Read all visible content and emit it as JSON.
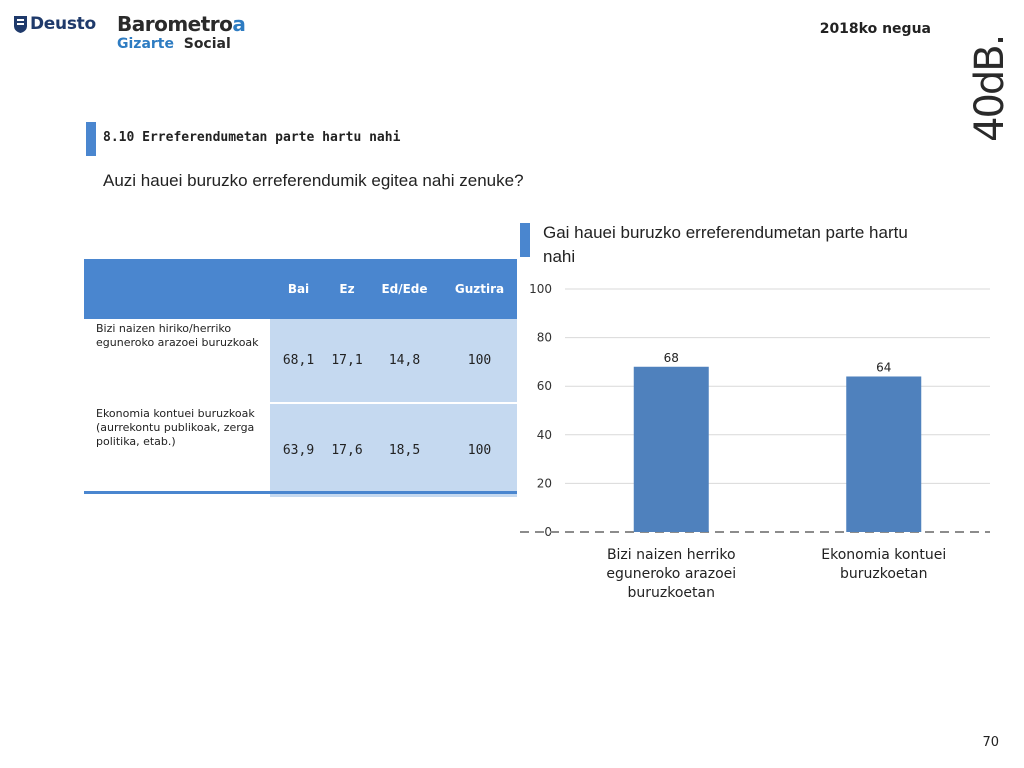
{
  "header": {
    "deusto_logo": "Deusto",
    "barometroa_prefix": "Barometro",
    "barometroa_suffix": "a",
    "gizarte_a": "Gizarte",
    "gizarte_b": "Social",
    "season": "2018ko negua",
    "brand_40db": "40dB."
  },
  "section": {
    "title": "8.10  Erreferendumetan parte hartu nahi",
    "question": "Auzi hauei buruzko erreferendumik egitea nahi zenuke?"
  },
  "table": {
    "headers": [
      "Bai",
      "Ez",
      "Ed/Ede",
      "Guztira"
    ],
    "rows": [
      {
        "label": "Bizi naizen hiriko/herriko eguneroko arazoei buruzkoak",
        "values": [
          "68,1",
          "17,1",
          "14,8",
          "100"
        ]
      },
      {
        "label": "Ekonomia kontuei buruzkoak (aurrekontu publikoak, zerga politika, etab.)",
        "values": [
          "63,9",
          "17,6",
          "18,5",
          "100"
        ]
      }
    ]
  },
  "chart_title": "Gai hauei buruzko erreferendumetan parte hartu nahi",
  "chart_data": {
    "type": "bar",
    "categories": [
      [
        "Bizi naizen herriko",
        "eguneroko arazoei",
        "buruzkoetan"
      ],
      [
        "Ekonomia kontuei",
        "buruzkoetan"
      ]
    ],
    "values": [
      68,
      64
    ],
    "ylim": [
      0,
      100
    ],
    "yticks": [
      0,
      20,
      40,
      60,
      80,
      100
    ],
    "grid": true,
    "bar_color": "#4f81bd"
  },
  "footer": {
    "page_number": "70"
  },
  "colors": {
    "accent": "#4a86cf",
    "cell_fill": "#c5d9f0",
    "brand_blue": "#2e7cc2"
  }
}
